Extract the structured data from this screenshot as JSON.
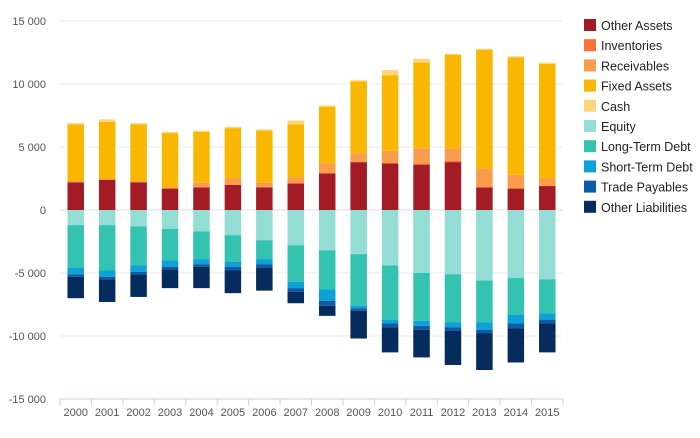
{
  "chart_data": {
    "type": "bar",
    "stacked": true,
    "categories": [
      "2000",
      "2001",
      "2002",
      "2003",
      "2004",
      "2005",
      "2006",
      "2007",
      "2008",
      "2009",
      "2010",
      "2011",
      "2012",
      "2013",
      "2014",
      "2015"
    ],
    "ylim": [
      -15000,
      15000
    ],
    "yticks": [
      15000,
      10000,
      5000,
      0,
      -5000,
      -10000,
      -15000
    ],
    "ytick_labels": [
      "15 000",
      "10 000",
      "5 000",
      "0",
      "-5 000",
      "-10 000",
      "-15 000"
    ],
    "grid": true,
    "legend_position": "right",
    "series": [
      {
        "name": "Other Assets",
        "color": "#a31b24",
        "values": [
          2200,
          2400,
          2200,
          1700,
          1800,
          2000,
          1800,
          2100,
          2900,
          3800,
          3700,
          3600,
          3800,
          1800,
          1700,
          1900
        ]
      },
      {
        "name": "Inventories",
        "color": "#ff6f36",
        "values": [
          0,
          0,
          0,
          0,
          0,
          0,
          0,
          0,
          0,
          0,
          0,
          100,
          100,
          0,
          0,
          0
        ]
      },
      {
        "name": "Receivables",
        "color": "#fa9c4c",
        "values": [
          100,
          100,
          100,
          100,
          400,
          500,
          400,
          500,
          800,
          700,
          1000,
          1200,
          1000,
          1500,
          1100,
          600
        ]
      },
      {
        "name": "Fixed Assets",
        "color": "#fab700",
        "values": [
          4500,
          4500,
          4500,
          4300,
          4000,
          4000,
          4100,
          4200,
          4500,
          5700,
          6000,
          6800,
          7400,
          9400,
          9300,
          9100
        ]
      },
      {
        "name": "Cash",
        "color": "#fdd57d",
        "values": [
          100,
          200,
          100,
          100,
          100,
          100,
          100,
          300,
          100,
          100,
          400,
          300,
          100,
          100,
          100,
          100
        ]
      },
      {
        "name": "Equity",
        "color": "#94ddd4",
        "values": [
          -1200,
          -1200,
          -1300,
          -1500,
          -1700,
          -2000,
          -2400,
          -2800,
          -3200,
          -3500,
          -4400,
          -5000,
          -5100,
          -5600,
          -5400,
          -5500
        ]
      },
      {
        "name": "Long-Term Debt",
        "color": "#34c2b1",
        "values": [
          -3400,
          -3600,
          -3100,
          -2500,
          -2200,
          -2100,
          -1500,
          -2900,
          -3100,
          -4100,
          -4300,
          -3800,
          -3800,
          -3300,
          -2900,
          -2700
        ]
      },
      {
        "name": "Short-Term Debt",
        "color": "#0ba3d6",
        "values": [
          -500,
          -500,
          -500,
          -500,
          -400,
          -400,
          -400,
          -500,
          -900,
          -200,
          -300,
          -400,
          -400,
          -600,
          -700,
          -500
        ]
      },
      {
        "name": "Trade Payables",
        "color": "#0d5aa8",
        "values": [
          -200,
          -200,
          -200,
          -200,
          -200,
          -300,
          -300,
          -300,
          -400,
          -200,
          -300,
          -300,
          -300,
          -300,
          -400,
          -300
        ]
      },
      {
        "name": "Other Liabilities",
        "color": "#062c5e",
        "values": [
          -1700,
          -1800,
          -1800,
          -1500,
          -1700,
          -1800,
          -1800,
          -900,
          -800,
          -2200,
          -2000,
          -2200,
          -2700,
          -2900,
          -2700,
          -2300
        ]
      }
    ]
  }
}
